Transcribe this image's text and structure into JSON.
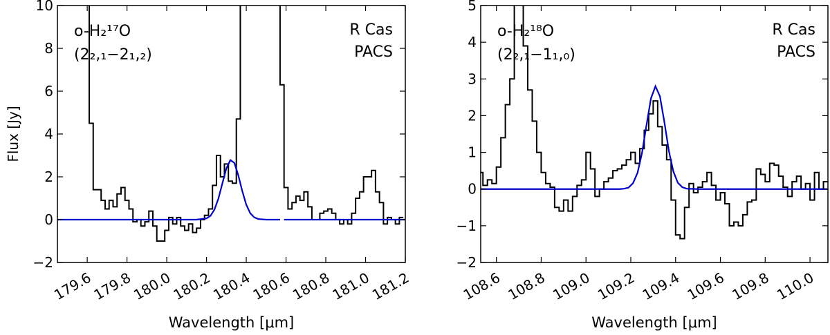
{
  "chart_data": [
    {
      "type": "line",
      "step": "mid",
      "ylabel": "Flux [Jy]",
      "xlabel": "Wavelength [μm]",
      "annotations": {
        "species": "o-H₂¹⁷O",
        "transition": "(2₂,₁−2₁,₂)",
        "source": "R Cas",
        "instrument": "PACS"
      },
      "xlim": [
        179.45,
        181.2
      ],
      "ylim": [
        -2,
        10
      ],
      "xticks": [
        179.6,
        179.8,
        {
          "value": 180,
          "label": "180.0"
        },
        180.2,
        180.4,
        180.6,
        180.8,
        {
          "value": 181,
          "label": "181.0"
        },
        181.2
      ],
      "yticks": [
        {
          "value": -2,
          "label": "−2"
        },
        0,
        2,
        4,
        6,
        8,
        10
      ],
      "series": [
        {
          "color": "#000000",
          "step": true,
          "x": [
            179.6,
            179.62,
            179.64,
            179.66,
            179.68,
            179.7,
            179.72,
            179.74,
            179.76,
            179.78,
            179.8,
            179.82,
            179.84,
            179.86,
            179.88,
            179.9,
            179.92,
            179.94,
            179.96,
            179.98,
            180.0,
            180.02,
            180.04,
            180.06,
            180.08,
            180.1,
            180.12,
            180.14,
            180.16,
            180.18,
            180.2,
            180.22,
            180.24,
            180.26,
            180.28,
            180.3,
            180.32,
            180.34,
            180.36,
            180.38,
            180.4,
            180.42,
            180.44,
            180.46,
            180.48,
            180.5,
            180.52,
            180.54,
            180.56,
            180.58,
            180.6,
            180.62,
            180.64,
            180.66,
            180.68,
            180.7,
            180.72,
            180.74,
            180.76,
            180.78,
            180.8,
            180.82,
            180.84,
            180.86,
            180.88,
            180.9,
            180.92,
            180.94,
            180.96,
            180.98,
            181.0,
            181.02,
            181.04,
            181.06,
            181.08,
            181.1,
            181.12,
            181.14,
            181.16,
            181.18
          ],
          "values": [
            12,
            4.5,
            1.4,
            1.4,
            0.9,
            0.5,
            0.9,
            0.6,
            1.2,
            1.5,
            0.9,
            0.5,
            -0.1,
            0.0,
            -0.3,
            -0.1,
            0.4,
            -0.3,
            -1.0,
            -1.0,
            -0.5,
            0.1,
            -0.2,
            0.1,
            -0.3,
            -0.5,
            -0.2,
            -0.6,
            -0.4,
            0.0,
            0.2,
            0.5,
            1.6,
            3.0,
            2.0,
            2.6,
            1.8,
            1.7,
            4.7,
            12,
            null,
            null,
            null,
            null,
            null,
            null,
            null,
            null,
            12,
            6.3,
            1.5,
            0.5,
            0.8,
            1.1,
            0.9,
            1.3,
            0.6,
            0.0,
            0.0,
            0.3,
            0.4,
            0.5,
            0.3,
            0.0,
            -0.2,
            0.0,
            -0.2,
            0.3,
            1.0,
            1.3,
            2.0,
            2.0,
            2.3,
            1.3,
            0.8,
            -0.2,
            0.1,
            0.0,
            -0.2,
            0.1
          ]
        },
        {
          "color": "#0000cc",
          "step": false,
          "x": [
            179.45,
            180.15,
            180.2,
            180.22,
            180.24,
            180.26,
            180.28,
            180.3,
            180.32,
            180.34,
            180.36,
            180.38,
            180.4,
            180.42,
            180.44,
            180.46,
            180.5,
            180.57,
            180.58,
            180.59,
            181.2
          ],
          "values": [
            0,
            0,
            0.06,
            0.18,
            0.47,
            0.99,
            1.7,
            2.4,
            2.78,
            2.65,
            2.07,
            1.33,
            0.7,
            0.3,
            0.11,
            0.03,
            0,
            0,
            null,
            0,
            0
          ]
        }
      ]
    },
    {
      "type": "line",
      "step": "mid",
      "xlabel": "Wavelength [μm]",
      "annotations": {
        "species": "o-H₂¹⁸O",
        "transition": "(2₂,₁−1₁,₀)",
        "source": "R Cas",
        "instrument": "PACS"
      },
      "xlim": [
        108.53,
        110.08
      ],
      "ylim": [
        -2,
        5
      ],
      "xticks": [
        108.6,
        108.8,
        {
          "value": 109,
          "label": "109.0"
        },
        109.2,
        109.4,
        109.6,
        109.8,
        {
          "value": 110,
          "label": "110.0"
        }
      ],
      "yticks": [
        {
          "value": -2,
          "label": "−2"
        },
        {
          "value": -1,
          "label": "−1"
        },
        0,
        1,
        2,
        3,
        4,
        5
      ],
      "series": [
        {
          "color": "#000000",
          "step": true,
          "x": [
            108.53,
            108.55,
            108.57,
            108.59,
            108.61,
            108.63,
            108.65,
            108.67,
            108.69,
            108.71,
            108.73,
            108.75,
            108.77,
            108.79,
            108.81,
            108.83,
            108.85,
            108.87,
            108.89,
            108.91,
            108.93,
            108.95,
            108.97,
            108.99,
            109.01,
            109.03,
            109.05,
            109.07,
            109.09,
            109.11,
            109.13,
            109.15,
            109.17,
            109.19,
            109.21,
            109.23,
            109.25,
            109.27,
            109.29,
            109.31,
            109.33,
            109.35,
            109.37,
            109.39,
            109.41,
            109.43,
            109.45,
            109.47,
            109.49,
            109.51,
            109.53,
            109.55,
            109.57,
            109.59,
            109.61,
            109.63,
            109.65,
            109.67,
            109.69,
            109.71,
            109.73,
            109.75,
            109.77,
            109.79,
            109.81,
            109.83,
            109.85,
            109.87,
            109.89,
            109.91,
            109.93,
            109.95,
            109.97,
            109.99,
            110.01,
            110.03,
            110.05,
            110.07
          ],
          "values": [
            0.45,
            0.1,
            0.25,
            0.15,
            0.6,
            1.4,
            2.3,
            3.0,
            6,
            6,
            3.9,
            2.7,
            1.85,
            1.0,
            0.45,
            0.15,
            0.05,
            -0.5,
            -0.6,
            -0.3,
            -0.6,
            -0.2,
            0.1,
            0.25,
            1.0,
            0.55,
            -0.2,
            0,
            0.2,
            0.3,
            0.5,
            0.55,
            0.65,
            0.8,
            1.0,
            0.7,
            1.1,
            1.6,
            2.05,
            2.4,
            1.7,
            1.2,
            0.8,
            -0.3,
            -1.25,
            -1.35,
            -0.5,
            0.15,
            -0.1,
            0.05,
            0.2,
            0.45,
            0.1,
            -0.3,
            -0.1,
            -0.4,
            -1.0,
            -0.9,
            -1.0,
            -0.7,
            -0.35,
            -0.3,
            0.55,
            0.4,
            0.2,
            0.7,
            0.65,
            0.35,
            0.05,
            -0.2,
            0.2,
            0.35,
            0.0,
            0.15,
            -0.3,
            0.45,
            0.0,
            0.2
          ]
        },
        {
          "color": "#0000cc",
          "step": false,
          "x": [
            108.53,
            109.15,
            109.17,
            109.19,
            109.21,
            109.23,
            109.25,
            109.27,
            109.29,
            109.31,
            109.33,
            109.35,
            109.37,
            109.39,
            109.41,
            109.43,
            109.45,
            109.5,
            110.08
          ],
          "values": [
            0,
            0,
            0.01,
            0.04,
            0.16,
            0.44,
            0.98,
            1.74,
            2.47,
            2.8,
            2.53,
            1.82,
            1.04,
            0.48,
            0.17,
            0.05,
            0.01,
            0,
            0
          ]
        }
      ]
    }
  ]
}
